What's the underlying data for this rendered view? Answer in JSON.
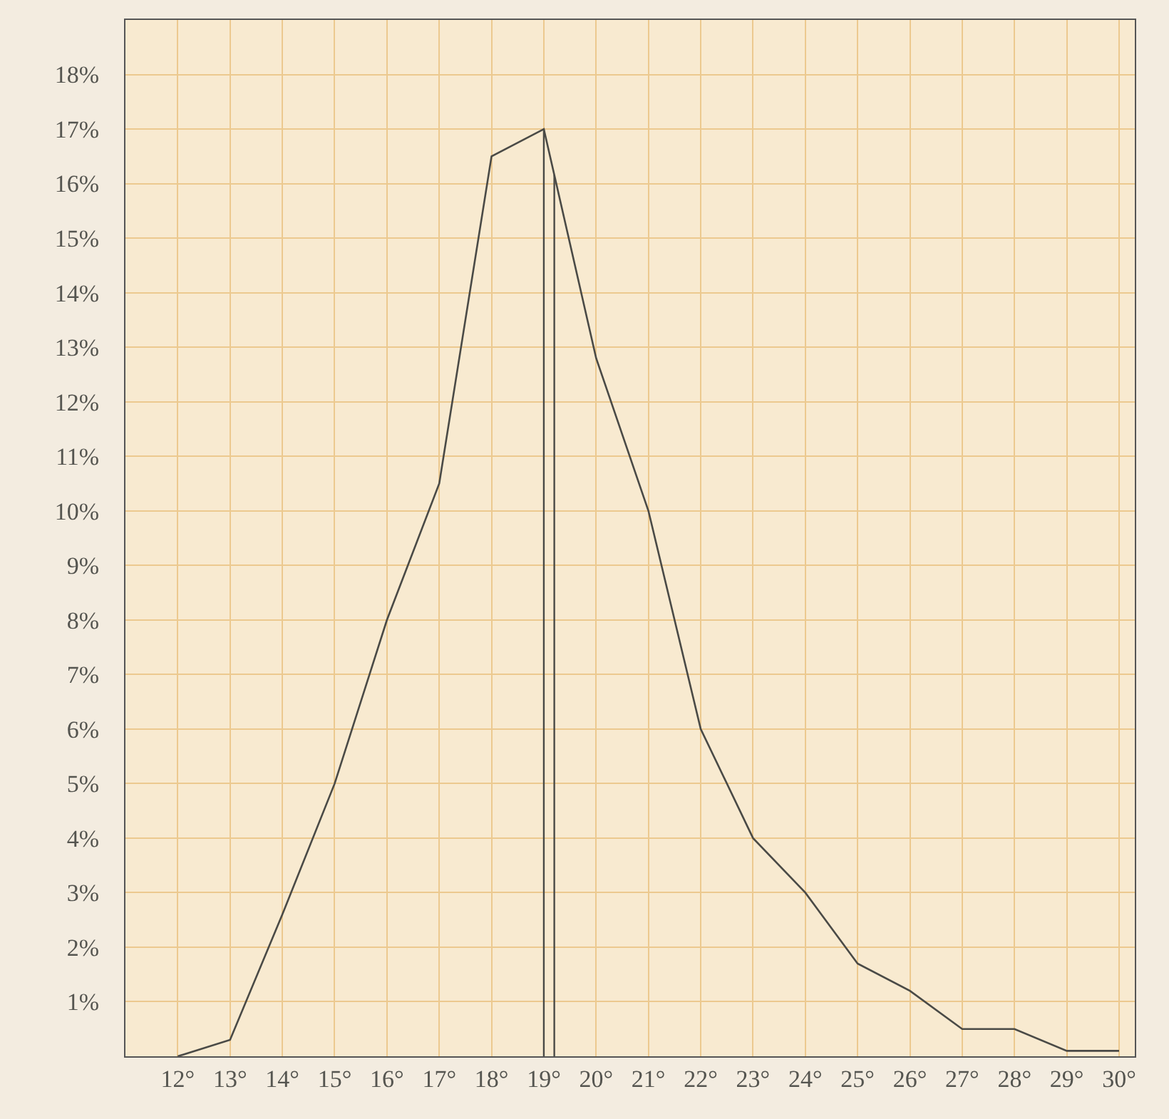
{
  "chart_data": {
    "type": "line",
    "x": [
      12,
      13,
      14,
      15,
      16,
      17,
      18,
      19,
      20,
      21,
      22,
      23,
      24,
      25,
      26,
      27,
      28,
      29,
      30
    ],
    "series": [
      {
        "color": "#4a4a46",
        "values": [
          0,
          0.3,
          2.6,
          5.0,
          8.0,
          10.5,
          16.5,
          17.0,
          12.8,
          10.0,
          6.0,
          4.0,
          3.0,
          1.7,
          1.2,
          0.5,
          0.5,
          0.1,
          0.1
        ]
      }
    ],
    "xlim": [
      11,
      30.3
    ],
    "ylim": [
      0,
      19
    ],
    "xticks": [
      {
        "value": 12,
        "label": "12°"
      },
      {
        "value": 13,
        "label": "13°"
      },
      {
        "value": 14,
        "label": "14°"
      },
      {
        "value": 15,
        "label": "15°"
      },
      {
        "value": 16,
        "label": "16°"
      },
      {
        "value": 17,
        "label": "17°"
      },
      {
        "value": 18,
        "label": "18°"
      },
      {
        "value": 19,
        "label": "19°"
      },
      {
        "value": 20,
        "label": "20°"
      },
      {
        "value": 21,
        "label": "21°"
      },
      {
        "value": 22,
        "label": "22°"
      },
      {
        "value": 23,
        "label": "23°"
      },
      {
        "value": 24,
        "label": "24°"
      },
      {
        "value": 25,
        "label": "25°"
      },
      {
        "value": 26,
        "label": "26°"
      },
      {
        "value": 27,
        "label": "27°"
      },
      {
        "value": 28,
        "label": "28°"
      },
      {
        "value": 29,
        "label": "29°"
      },
      {
        "value": 30,
        "label": "30°"
      }
    ],
    "yticks": [
      {
        "value": 1,
        "label": "1%"
      },
      {
        "value": 2,
        "label": "2%"
      },
      {
        "value": 3,
        "label": "3%"
      },
      {
        "value": 4,
        "label": "4%"
      },
      {
        "value": 5,
        "label": "5%"
      },
      {
        "value": 6,
        "label": "6%"
      },
      {
        "value": 7,
        "label": "7%"
      },
      {
        "value": 8,
        "label": "8%"
      },
      {
        "value": 9,
        "label": "9%"
      },
      {
        "value": 10,
        "label": "10%"
      },
      {
        "value": 11,
        "label": "11%"
      },
      {
        "value": 12,
        "label": "12%"
      },
      {
        "value": 13,
        "label": "13%"
      },
      {
        "value": 14,
        "label": "14%"
      },
      {
        "value": 15,
        "label": "15%"
      },
      {
        "value": 16,
        "label": "16%"
      },
      {
        "value": 17,
        "label": "17%"
      },
      {
        "value": 18,
        "label": "18%"
      }
    ],
    "ref_lines": [
      {
        "axis": "x",
        "value": 19,
        "color": "#4a4a46"
      },
      {
        "axis": "x",
        "value": 19.2,
        "color": "#4a4a46"
      }
    ],
    "grid": true,
    "marker": "none",
    "line_style": "solid"
  }
}
